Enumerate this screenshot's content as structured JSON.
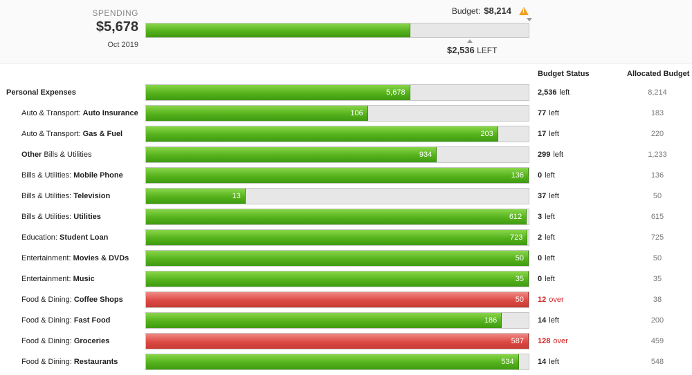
{
  "summary": {
    "spending_label": "SPENDING",
    "spending_amount": "$5,678",
    "period": "Oct 2019",
    "budget_label": "Budget:",
    "budget_amount": "$8,214",
    "left_amount": "$2,536",
    "left_label": "LEFT",
    "fill_fraction": 0.69
  },
  "columns": {
    "status": "Budget Status",
    "allocated": "Allocated Budget"
  },
  "colors": {
    "on_budget": "#55b21c",
    "over_budget": "#dc4a44",
    "over_text": "#d22020",
    "warning": "#f0a020"
  },
  "rows": [
    {
      "prefix": "",
      "name": "Personal Expenses",
      "spent": "5,678",
      "status_num": "2,536",
      "status_word": "left",
      "allocated": "8,214",
      "fill": 0.69,
      "over": false,
      "total": true
    },
    {
      "prefix": "Auto & Transport: ",
      "name": "Auto Insurance",
      "spent": "106",
      "status_num": "77",
      "status_word": "left",
      "allocated": "183",
      "fill": 0.58,
      "over": false
    },
    {
      "prefix": "Auto & Transport: ",
      "name": "Gas & Fuel",
      "spent": "203",
      "status_num": "17",
      "status_word": "left",
      "allocated": "220",
      "fill": 0.92,
      "over": false
    },
    {
      "prefix": "",
      "name": "Other",
      "suffix": " Bills & Utilities",
      "spent": "934",
      "status_num": "299",
      "status_word": "left",
      "allocated": "1,233",
      "fill": 0.76,
      "over": false
    },
    {
      "prefix": "Bills & Utilities: ",
      "name": "Mobile Phone",
      "spent": "136",
      "status_num": "0",
      "status_word": "left",
      "allocated": "136",
      "fill": 1.0,
      "over": false
    },
    {
      "prefix": "Bills & Utilities: ",
      "name": "Television",
      "spent": "13",
      "status_num": "37",
      "status_word": "left",
      "allocated": "50",
      "fill": 0.26,
      "over": false
    },
    {
      "prefix": "Bills & Utilities: ",
      "name": "Utilities",
      "spent": "612",
      "status_num": "3",
      "status_word": "left",
      "allocated": "615",
      "fill": 0.995,
      "over": false
    },
    {
      "prefix": "Education: ",
      "name": "Student Loan",
      "spent": "723",
      "status_num": "2",
      "status_word": "left",
      "allocated": "725",
      "fill": 0.997,
      "over": false
    },
    {
      "prefix": "Entertainment: ",
      "name": "Movies & DVDs",
      "spent": "50",
      "status_num": "0",
      "status_word": "left",
      "allocated": "50",
      "fill": 1.0,
      "over": false
    },
    {
      "prefix": "Entertainment: ",
      "name": "Music",
      "spent": "35",
      "status_num": "0",
      "status_word": "left",
      "allocated": "35",
      "fill": 1.0,
      "over": false
    },
    {
      "prefix": "Food & Dining: ",
      "name": "Coffee Shops",
      "spent": "50",
      "status_num": "12",
      "status_word": "over",
      "allocated": "38",
      "fill": 1.0,
      "over": true
    },
    {
      "prefix": "Food & Dining: ",
      "name": "Fast Food",
      "spent": "186",
      "status_num": "14",
      "status_word": "left",
      "allocated": "200",
      "fill": 0.93,
      "over": false
    },
    {
      "prefix": "Food & Dining: ",
      "name": "Groceries",
      "spent": "587",
      "status_num": "128",
      "status_word": "over",
      "allocated": "459",
      "fill": 1.0,
      "over": true
    },
    {
      "prefix": "Food & Dining: ",
      "name": "Restaurants",
      "spent": "534",
      "status_num": "14",
      "status_word": "left",
      "allocated": "548",
      "fill": 0.974,
      "over": false
    }
  ]
}
